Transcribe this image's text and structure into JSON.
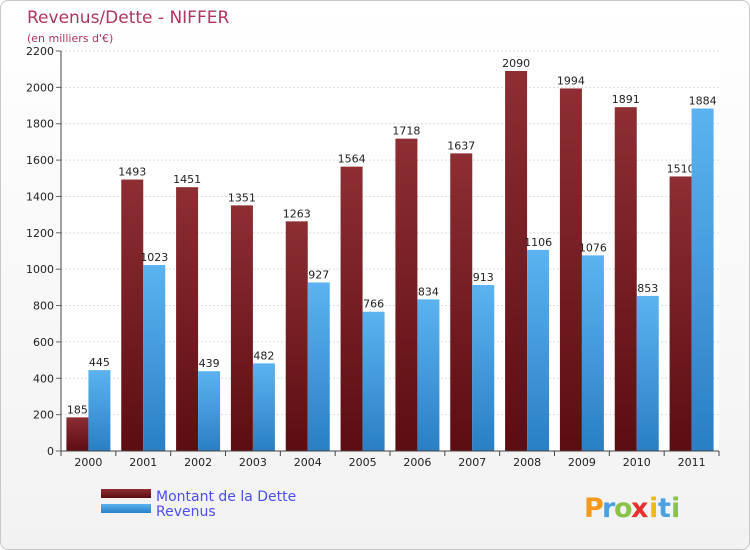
{
  "chart_data": {
    "type": "bar",
    "title": "Revenus/Dette - NIFFER",
    "subtitle": "(en milliers d'€)",
    "categories": [
      "2000",
      "2001",
      "2002",
      "2003",
      "2004",
      "2005",
      "2006",
      "2007",
      "2008",
      "2009",
      "2010",
      "2011"
    ],
    "series": [
      {
        "name": "Montant de la Dette",
        "values": [
          185,
          1493,
          1451,
          1351,
          1263,
          1564,
          1718,
          1637,
          2090,
          1994,
          1891,
          1510
        ],
        "color": "#7a1f24"
      },
      {
        "name": "Revenus",
        "values": [
          445,
          1023,
          439,
          482,
          927,
          766,
          834,
          913,
          1106,
          1076,
          853,
          1884
        ],
        "color": "#4ea6e6"
      }
    ],
    "ylim": [
      0,
      2200
    ],
    "yticks": [
      0,
      200,
      400,
      600,
      800,
      1000,
      1200,
      1400,
      1600,
      1800,
      2000,
      2200
    ],
    "grid": true,
    "legend_position": "bottom-left"
  },
  "logo": {
    "text": "Proxiti"
  }
}
